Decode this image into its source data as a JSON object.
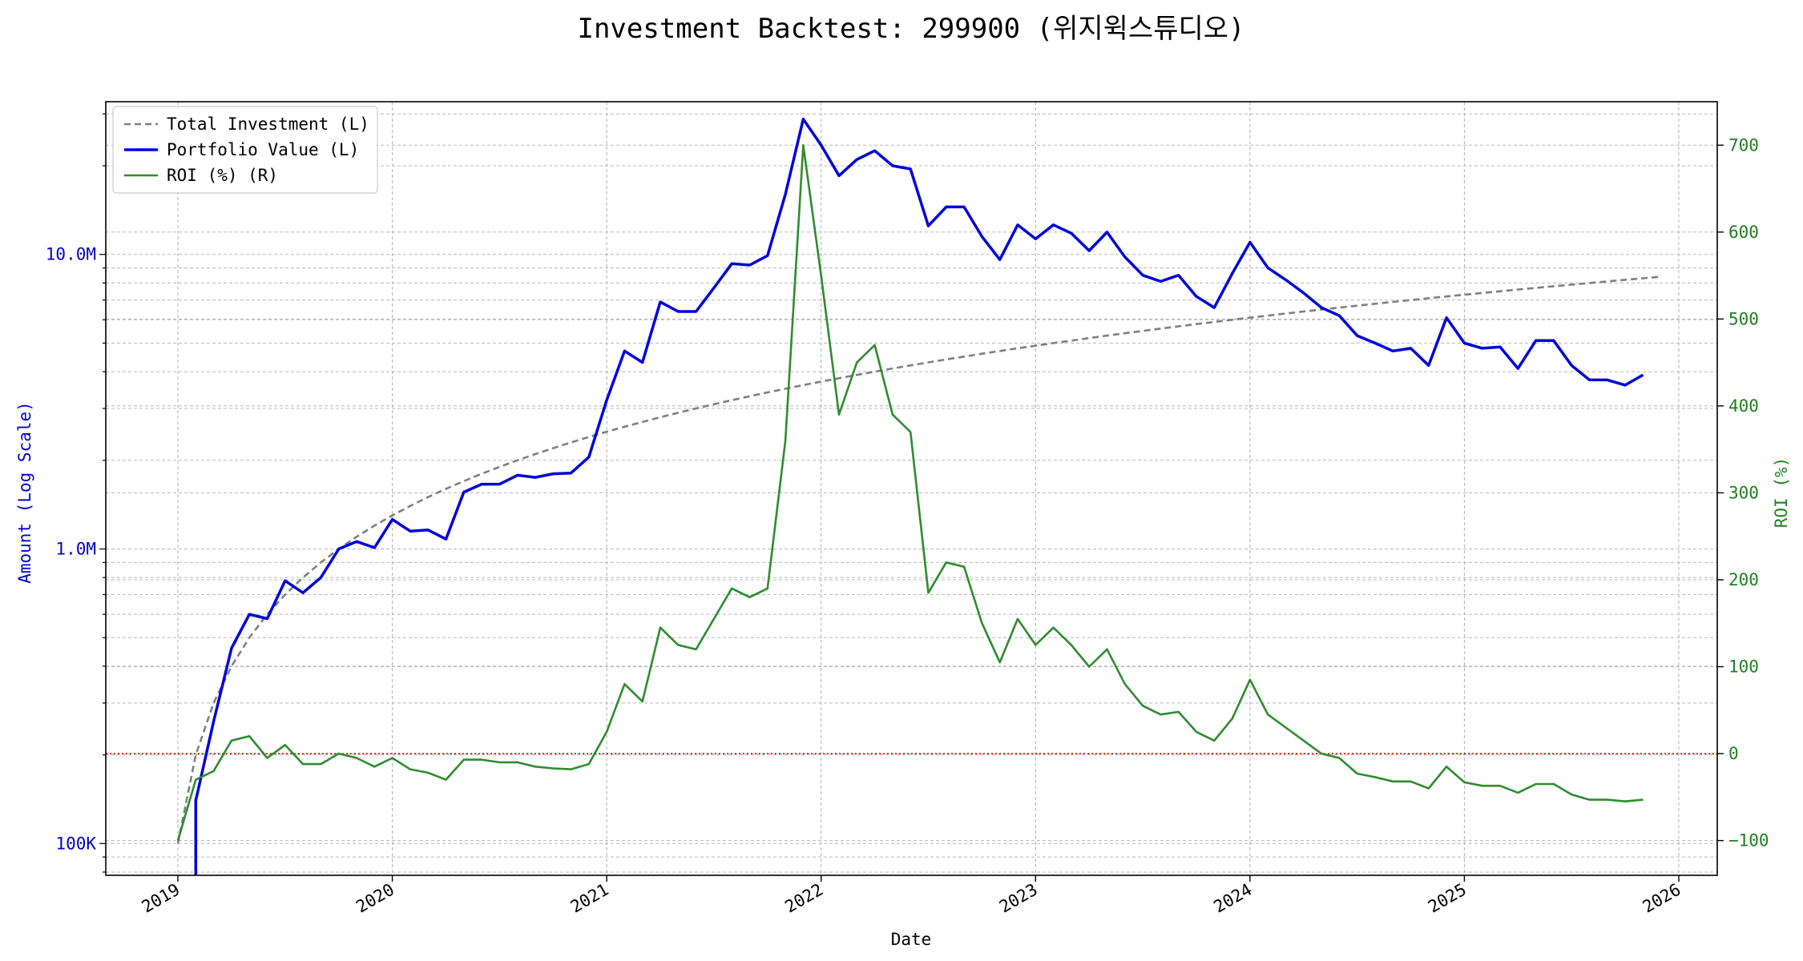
{
  "chart_data": {
    "type": "line",
    "title": "Investment Backtest: 299900 (위지윅스튜디오)",
    "xlabel": "Date",
    "ylabel_left": "Amount (Log Scale)",
    "ylabel_right": "ROI (%)",
    "left_scale": "log",
    "ylim_left": [
      78000,
      33000000
    ],
    "ylim_right": [
      -140,
      750
    ],
    "left_ticks": [
      {
        "value": 100000,
        "label": "100K"
      },
      {
        "value": 1000000,
        "label": "1.0M"
      },
      {
        "value": 10000000,
        "label": "10.0M"
      }
    ],
    "right_ticks": [
      {
        "value": -100,
        "label": "−100"
      },
      {
        "value": 0,
        "label": "0"
      },
      {
        "value": 100,
        "label": "100"
      },
      {
        "value": 200,
        "label": "200"
      },
      {
        "value": 300,
        "label": "300"
      },
      {
        "value": 400,
        "label": "400"
      },
      {
        "value": 500,
        "label": "500"
      },
      {
        "value": 600,
        "label": "600"
      },
      {
        "value": 700,
        "label": "700"
      }
    ],
    "x_ticks": [
      "2019",
      "2020",
      "2021",
      "2022",
      "2023",
      "2024",
      "2025",
      "2026"
    ],
    "grid": true,
    "legend_position": "top-left",
    "reference_line": {
      "axis": "right",
      "value": 0,
      "color": "#e00000",
      "style": "dotted"
    },
    "series": [
      {
        "name": "Total Investment (L)",
        "axis": "left",
        "color": "#7f7f7f",
        "style": "dashed",
        "x_start": "2019-01",
        "values": [
          100000,
          200000,
          300000,
          400000,
          500000,
          600000,
          700000,
          800000,
          900000,
          1000000,
          1100000,
          1200000,
          1300000,
          1400000,
          1500000,
          1600000,
          1700000,
          1800000,
          1900000,
          2000000,
          2100000,
          2200000,
          2300000,
          2400000,
          2500000,
          2600000,
          2700000,
          2800000,
          2900000,
          3000000,
          3100000,
          3200000,
          3300000,
          3400000,
          3500000,
          3600000,
          3700000,
          3800000,
          3900000,
          4000000,
          4100000,
          4200000,
          4300000,
          4400000,
          4500000,
          4600000,
          4700000,
          4800000,
          4900000,
          5000000,
          5100000,
          5200000,
          5300000,
          5400000,
          5500000,
          5600000,
          5700000,
          5800000,
          5900000,
          6000000,
          6100000,
          6200000,
          6300000,
          6400000,
          6500000,
          6600000,
          6700000,
          6800000,
          6900000,
          7000000,
          7100000,
          7200000,
          7300000,
          7400000,
          7500000,
          7600000,
          7700000,
          7800000,
          7900000,
          8000000,
          8100000,
          8200000,
          8300000,
          8400000
        ]
      },
      {
        "name": "Portfolio Value (L)",
        "axis": "left",
        "color": "#0000dd",
        "style": "solid",
        "x_start": "2019-02",
        "values": [
          140000,
          260000,
          460000,
          600000,
          580000,
          780000,
          710000,
          800000,
          1000000,
          1060000,
          1010000,
          1260000,
          1150000,
          1160000,
          1080000,
          1560000,
          1660000,
          1660000,
          1780000,
          1750000,
          1800000,
          1810000,
          2050000,
          3200000,
          4700000,
          4300000,
          6900000,
          6400000,
          6400000,
          7700000,
          9300000,
          9200000,
          9900000,
          16000000,
          28800000,
          23500000,
          18500000,
          21000000,
          22500000,
          20000000,
          19500000,
          12500000,
          14500000,
          14500000,
          11500000,
          9600000,
          12600000,
          11300000,
          12600000,
          11800000,
          10300000,
          11900000,
          9800000,
          8500000,
          8100000,
          8500000,
          7200000,
          6600000,
          8600000,
          11000000,
          9000000,
          8200000,
          7400000,
          6600000,
          6200000,
          5300000,
          5000000,
          4700000,
          4800000,
          4200000,
          6100000,
          5000000,
          4800000,
          4850000,
          4100000,
          5100000,
          5100000,
          4200000,
          3750000,
          3750000,
          3600000,
          3900000
        ]
      },
      {
        "name": "ROI (%) (R)",
        "axis": "right",
        "color": "#2e8b2e",
        "style": "solid",
        "x_start": "2019-01",
        "values": [
          -100,
          -30,
          -20,
          15,
          20,
          -5,
          10,
          -12,
          -12,
          0,
          -5,
          -15,
          -5,
          -18,
          -22,
          -30,
          -7,
          -7,
          -10,
          -10,
          -15,
          -17,
          -18,
          -12,
          25,
          80,
          60,
          145,
          125,
          120,
          155,
          190,
          180,
          190,
          360,
          700,
          550,
          390,
          450,
          470,
          390,
          370,
          185,
          220,
          215,
          150,
          105,
          155,
          125,
          145,
          125,
          100,
          120,
          80,
          55,
          45,
          48,
          25,
          15,
          40,
          85,
          45,
          30,
          15,
          0,
          -5,
          -23,
          -27,
          -32,
          -32,
          -40,
          -15,
          -33,
          -37,
          -37,
          -45,
          -35,
          -35,
          -47,
          -53,
          -53,
          -55,
          -53
        ]
      }
    ]
  }
}
